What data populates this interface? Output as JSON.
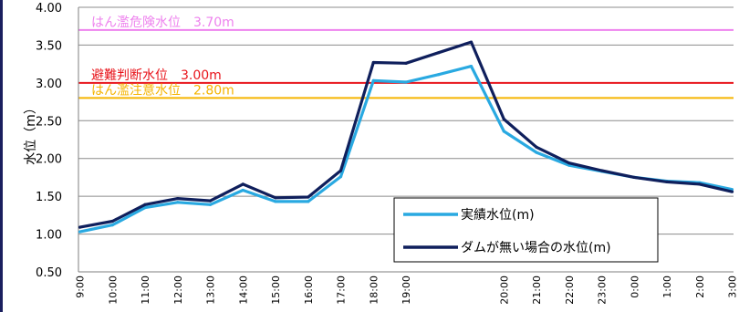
{
  "chart_data": {
    "type": "line",
    "title": "",
    "xlabel": "",
    "ylabel": "水位（m）",
    "ylim": [
      0.5,
      4.0
    ],
    "yticks": [
      "0.50",
      "1.00",
      "1.50",
      "2.00",
      "2.50",
      "3.00",
      "3.50",
      "4.00"
    ],
    "grid": "horizontal",
    "legend_position": "bottom-right",
    "x_labels": [
      "9:00",
      "10:00",
      "11:00",
      "12:00",
      "13:00",
      "14:00",
      "15:00",
      "16:00",
      "17:00",
      "18:00",
      "19:00",
      "",
      "",
      "20:00",
      "21:00",
      "22:00",
      "23:00",
      "0:00",
      "1:00",
      "2:00",
      "3:00"
    ],
    "series": [
      {
        "name": "実績水位(m)",
        "color": "#29A9E1",
        "values": [
          1.03,
          1.12,
          1.35,
          1.42,
          1.39,
          1.58,
          1.43,
          1.43,
          1.76,
          3.03,
          3.01,
          3.11,
          3.22,
          2.36,
          2.08,
          1.91,
          1.83,
          1.75,
          1.7,
          1.68,
          1.59
        ]
      },
      {
        "name": "ダムが無い場合の水位(m)",
        "color": "#0F1F5C",
        "values": [
          1.09,
          1.17,
          1.39,
          1.47,
          1.44,
          1.66,
          1.48,
          1.49,
          1.84,
          3.27,
          3.26,
          3.4,
          3.54,
          2.52,
          2.15,
          1.94,
          1.84,
          1.75,
          1.69,
          1.66,
          1.56
        ]
      }
    ],
    "reference_lines": [
      {
        "label": "はん濫危険水位　3.70m",
        "value": 3.7,
        "color": "#EE82EE"
      },
      {
        "label": "避難判断水位　3.00m",
        "value": 3.0,
        "color": "#E8141B"
      },
      {
        "label": "はん濫注意水位　2.80m",
        "value": 2.8,
        "color": "#F5B400"
      }
    ]
  }
}
